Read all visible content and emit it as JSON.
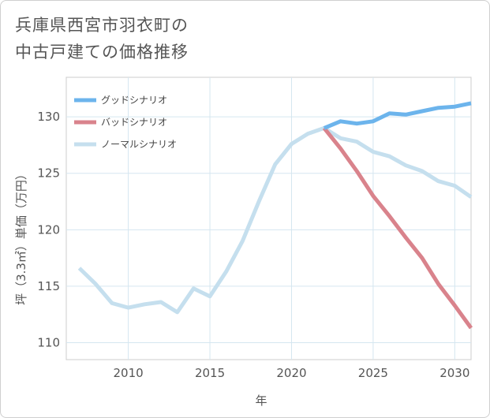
{
  "title_lines": [
    "兵庫県西宮市羽衣町の",
    "中古戸建ての価格推移"
  ],
  "chart_data": {
    "type": "line",
    "xlabel": "年",
    "ylabel": "坪（3.3㎡）単価（万円）",
    "xlim": [
      2006.2,
      2031
    ],
    "ylim": [
      108.5,
      133.5
    ],
    "xticks": [
      2010,
      2015,
      2020,
      2025,
      2030
    ],
    "yticks": [
      110,
      115,
      120,
      125,
      130
    ],
    "grid": true,
    "legend_position": "top-left",
    "series": [
      {
        "name": "グッドシナリオ",
        "color": "#6cb4ec",
        "x": [
          2022,
          2023,
          2024,
          2025,
          2026,
          2027,
          2028,
          2029,
          2030,
          2031
        ],
        "values": [
          129.0,
          129.6,
          129.4,
          129.6,
          130.3,
          130.2,
          130.5,
          130.8,
          130.9,
          131.2
        ]
      },
      {
        "name": "バッドシナリオ",
        "color": "#d9838c",
        "x": [
          2022,
          2023,
          2024,
          2025,
          2026,
          2027,
          2028,
          2029,
          2030,
          2031
        ],
        "values": [
          129.0,
          127.2,
          125.2,
          123.0,
          121.2,
          119.3,
          117.5,
          115.2,
          113.3,
          111.3
        ]
      },
      {
        "name": "ノーマルシナリオ",
        "color": "#c5dfee",
        "x": [
          2007,
          2008,
          2009,
          2010,
          2011,
          2012,
          2013,
          2014,
          2015,
          2016,
          2017,
          2018,
          2019,
          2020,
          2021,
          2022,
          2023,
          2024,
          2025,
          2026,
          2027,
          2028,
          2029,
          2030,
          2031
        ],
        "values": [
          116.6,
          115.2,
          113.5,
          113.1,
          113.4,
          113.6,
          112.7,
          114.8,
          114.1,
          116.3,
          119.0,
          122.5,
          125.8,
          127.6,
          128.5,
          129.0,
          128.1,
          127.8,
          126.9,
          126.5,
          125.7,
          125.2,
          124.3,
          123.9,
          122.9
        ]
      }
    ]
  }
}
